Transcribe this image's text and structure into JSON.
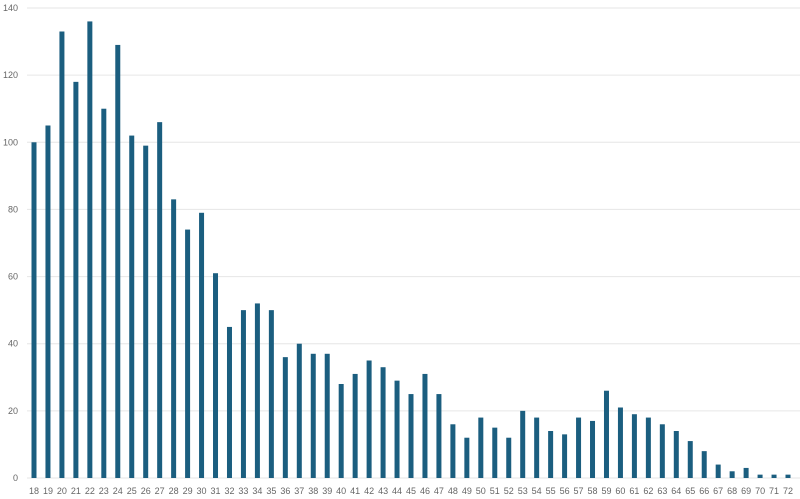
{
  "chart_data": {
    "type": "bar",
    "title": "",
    "xlabel": "",
    "ylabel": "",
    "ylim": [
      0,
      140
    ],
    "yticks": [
      0,
      20,
      40,
      60,
      80,
      100,
      120,
      140
    ],
    "grid": true,
    "bar_color": "#1b5e7f",
    "categories": [
      "18",
      "19",
      "20",
      "21",
      "22",
      "23",
      "24",
      "25",
      "26",
      "27",
      "28",
      "29",
      "30",
      "31",
      "32",
      "33",
      "34",
      "35",
      "36",
      "37",
      "38",
      "39",
      "40",
      "41",
      "42",
      "43",
      "44",
      "45",
      "46",
      "47",
      "48",
      "49",
      "50",
      "51",
      "52",
      "53",
      "54",
      "55",
      "56",
      "57",
      "58",
      "59",
      "60",
      "61",
      "62",
      "63",
      "64",
      "65",
      "66",
      "67",
      "68",
      "69",
      "70",
      "71",
      "72"
    ],
    "values": [
      100,
      105,
      133,
      118,
      136,
      110,
      129,
      102,
      99,
      106,
      83,
      74,
      79,
      61,
      45,
      50,
      52,
      50,
      36,
      40,
      37,
      37,
      28,
      31,
      35,
      33,
      29,
      25,
      31,
      25,
      16,
      12,
      18,
      15,
      12,
      20,
      18,
      14,
      13,
      18,
      17,
      26,
      21,
      19,
      18,
      16,
      14,
      11,
      8,
      4,
      2,
      3,
      1,
      1,
      1
    ]
  }
}
